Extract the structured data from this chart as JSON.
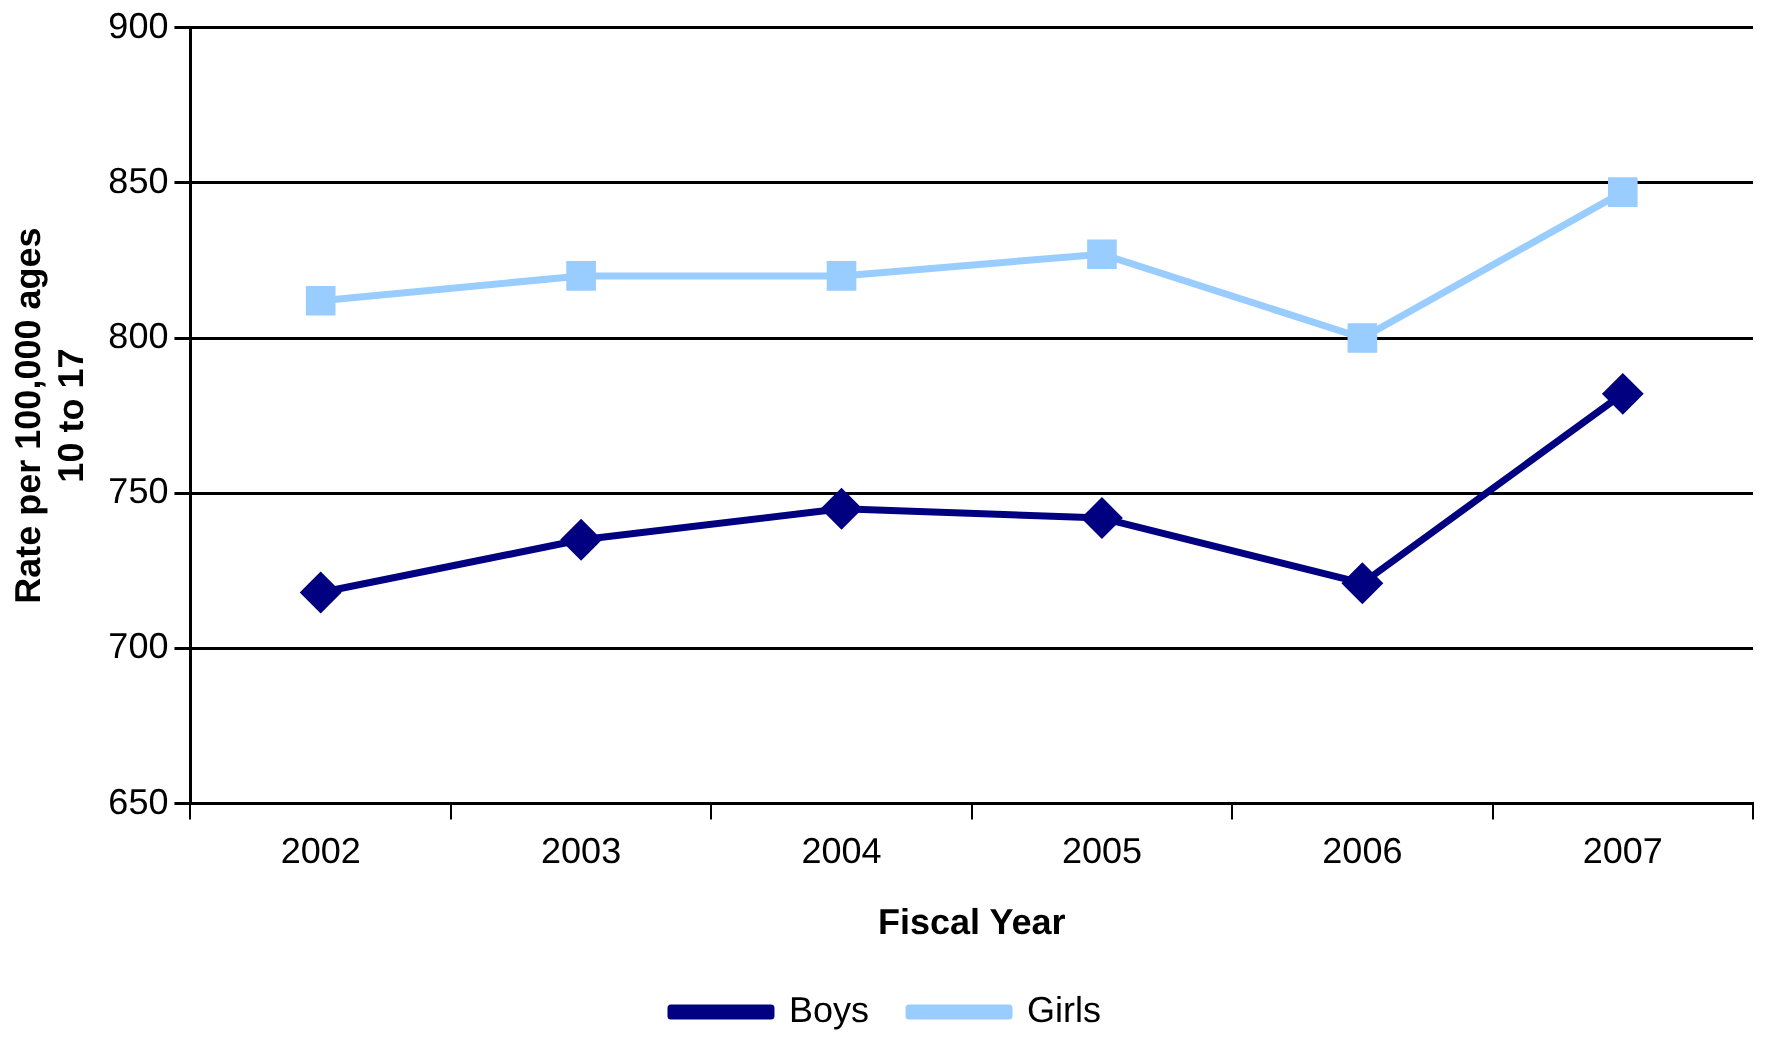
{
  "chart_data": {
    "type": "line",
    "xlabel": "Fiscal Year",
    "ylabel": "Rate per 100,000 ages 10 to 17",
    "categories": [
      "2002",
      "2003",
      "2004",
      "2005",
      "2006",
      "2007"
    ],
    "series": [
      {
        "name": "Boys",
        "color": "#000080",
        "marker": "diamond",
        "values": [
          718,
          735,
          745,
          742,
          721,
          782
        ]
      },
      {
        "name": "Girls",
        "color": "#99ccff",
        "marker": "square",
        "values": [
          812,
          820,
          820,
          827,
          800,
          847
        ]
      }
    ],
    "ylim": [
      650,
      900
    ],
    "yticks": [
      650,
      700,
      750,
      800,
      850,
      900
    ],
    "grid": "y",
    "legend": "bottom",
    "line_style": "solid"
  }
}
